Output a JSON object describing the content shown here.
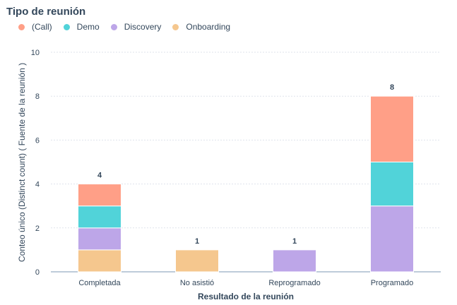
{
  "chart_data": {
    "type": "bar",
    "stacked": true,
    "legend_title": "Tipo de reunión",
    "categories": [
      "Completada",
      "No asistió",
      "Reprogramado",
      "Programado"
    ],
    "series": [
      {
        "name": "Onboarding",
        "color": "#f5c78e",
        "values": [
          1,
          1,
          0,
          0
        ]
      },
      {
        "name": "Discovery",
        "color": "#bda6e8",
        "values": [
          1,
          0,
          1,
          3
        ]
      },
      {
        "name": "Demo",
        "color": "#51d3d9",
        "values": [
          1,
          0,
          0,
          2
        ]
      },
      {
        "name": "(Call)",
        "color": "#ff9f87",
        "values": [
          1,
          0,
          0,
          3
        ]
      }
    ],
    "legend_order": [
      "(Call)",
      "Demo",
      "Discovery",
      "Onboarding"
    ],
    "totals": [
      4,
      1,
      1,
      8
    ],
    "xlabel": "Resultado de la reunión",
    "ylabel": "Conteo único (Distinct count) ( Fuente de la reunión )",
    "ylim": [
      0,
      10
    ],
    "yticks": [
      0,
      2,
      4,
      6,
      8,
      10
    ],
    "grid": true,
    "legend_position": "top-left"
  }
}
